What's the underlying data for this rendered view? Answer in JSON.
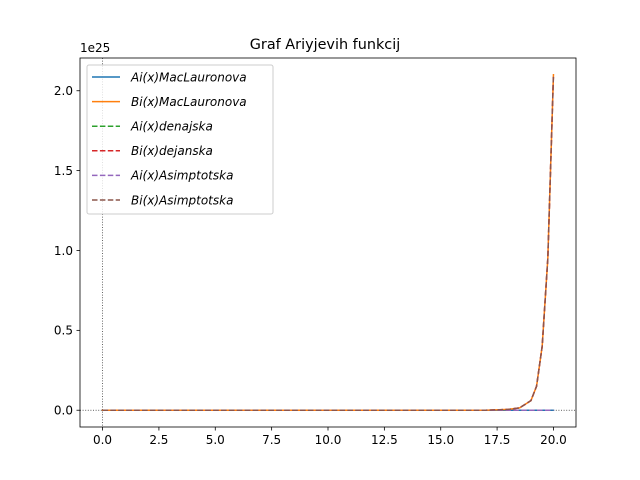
{
  "chart_data": {
    "type": "line",
    "title": "Graf Ariyjevih funkcij",
    "xlabel": "",
    "ylabel": "",
    "y_offset_label": "1e25",
    "xlim": [
      -1.0,
      21.0
    ],
    "ylim": [
      -0.105,
      2.205
    ],
    "xticks": [
      0.0,
      2.5,
      5.0,
      7.5,
      10.0,
      12.5,
      15.0,
      17.5,
      20.0
    ],
    "xtick_labels": [
      "0.0",
      "2.5",
      "5.0",
      "7.5",
      "10.0",
      "12.5",
      "15.0",
      "17.5",
      "20.0"
    ],
    "yticks": [
      0.0,
      0.5,
      1.0,
      1.5,
      2.0
    ],
    "ytick_labels": [
      "0.0",
      "0.5",
      "1.0",
      "1.5",
      "2.0"
    ],
    "grid": false,
    "reference_lines": {
      "x": 0,
      "y": 0
    },
    "legend": {
      "placement": "top-left",
      "entries": [
        {
          "label": "Ai(x)MacLauronova",
          "color": "#1f77b4",
          "dash": "solid"
        },
        {
          "label": "Bi(x)MacLauronova",
          "color": "#ff7f0e",
          "dash": "solid"
        },
        {
          "label": "Ai(x)denajska",
          "color": "#2ca02c",
          "dash": "dashed"
        },
        {
          "label": "Bi(x)dejanska",
          "color": "#d62728",
          "dash": "dashed"
        },
        {
          "label": "Ai(x)Asimptotska",
          "color": "#9467bd",
          "dash": "dashed"
        },
        {
          "label": "Bi(x)Asimptotska",
          "color": "#8c564b",
          "dash": "dashed"
        }
      ]
    },
    "series": [
      {
        "name": "Ai(x)MacLauronova",
        "color": "#1f77b4",
        "dash": "solid",
        "x": [
          0,
          20
        ],
        "y": [
          0,
          0
        ]
      },
      {
        "name": "Bi(x)MacLauronova",
        "color": "#ff7f0e",
        "dash": "solid",
        "x": [
          0,
          17.0,
          18.0,
          18.5,
          19.0,
          19.25,
          19.5,
          19.75,
          20.0
        ],
        "y": [
          0,
          0.0,
          0.005,
          0.015,
          0.06,
          0.15,
          0.4,
          0.95,
          2.1
        ]
      },
      {
        "name": "Ai(x)denajska",
        "color": "#2ca02c",
        "dash": "dashed",
        "x": [
          0,
          20
        ],
        "y": [
          0,
          0
        ]
      },
      {
        "name": "Bi(x)dejanska",
        "color": "#d62728",
        "dash": "dashed",
        "x": [
          0,
          17.0,
          18.0,
          18.5,
          19.0,
          19.25,
          19.5,
          19.75,
          20.0
        ],
        "y": [
          0,
          0.0,
          0.005,
          0.015,
          0.06,
          0.15,
          0.4,
          0.95,
          2.1
        ]
      },
      {
        "name": "Ai(x)Asimptotska",
        "color": "#9467bd",
        "dash": "dashed",
        "x": [
          0,
          20
        ],
        "y": [
          0,
          0
        ]
      },
      {
        "name": "Bi(x)Asimptotska",
        "color": "#8c564b",
        "dash": "dashed",
        "x": [
          0,
          17.0,
          18.0,
          18.5,
          19.0,
          19.25,
          19.5,
          19.75,
          20.0
        ],
        "y": [
          0,
          0.0,
          0.005,
          0.015,
          0.06,
          0.15,
          0.4,
          0.95,
          2.1
        ]
      }
    ]
  }
}
